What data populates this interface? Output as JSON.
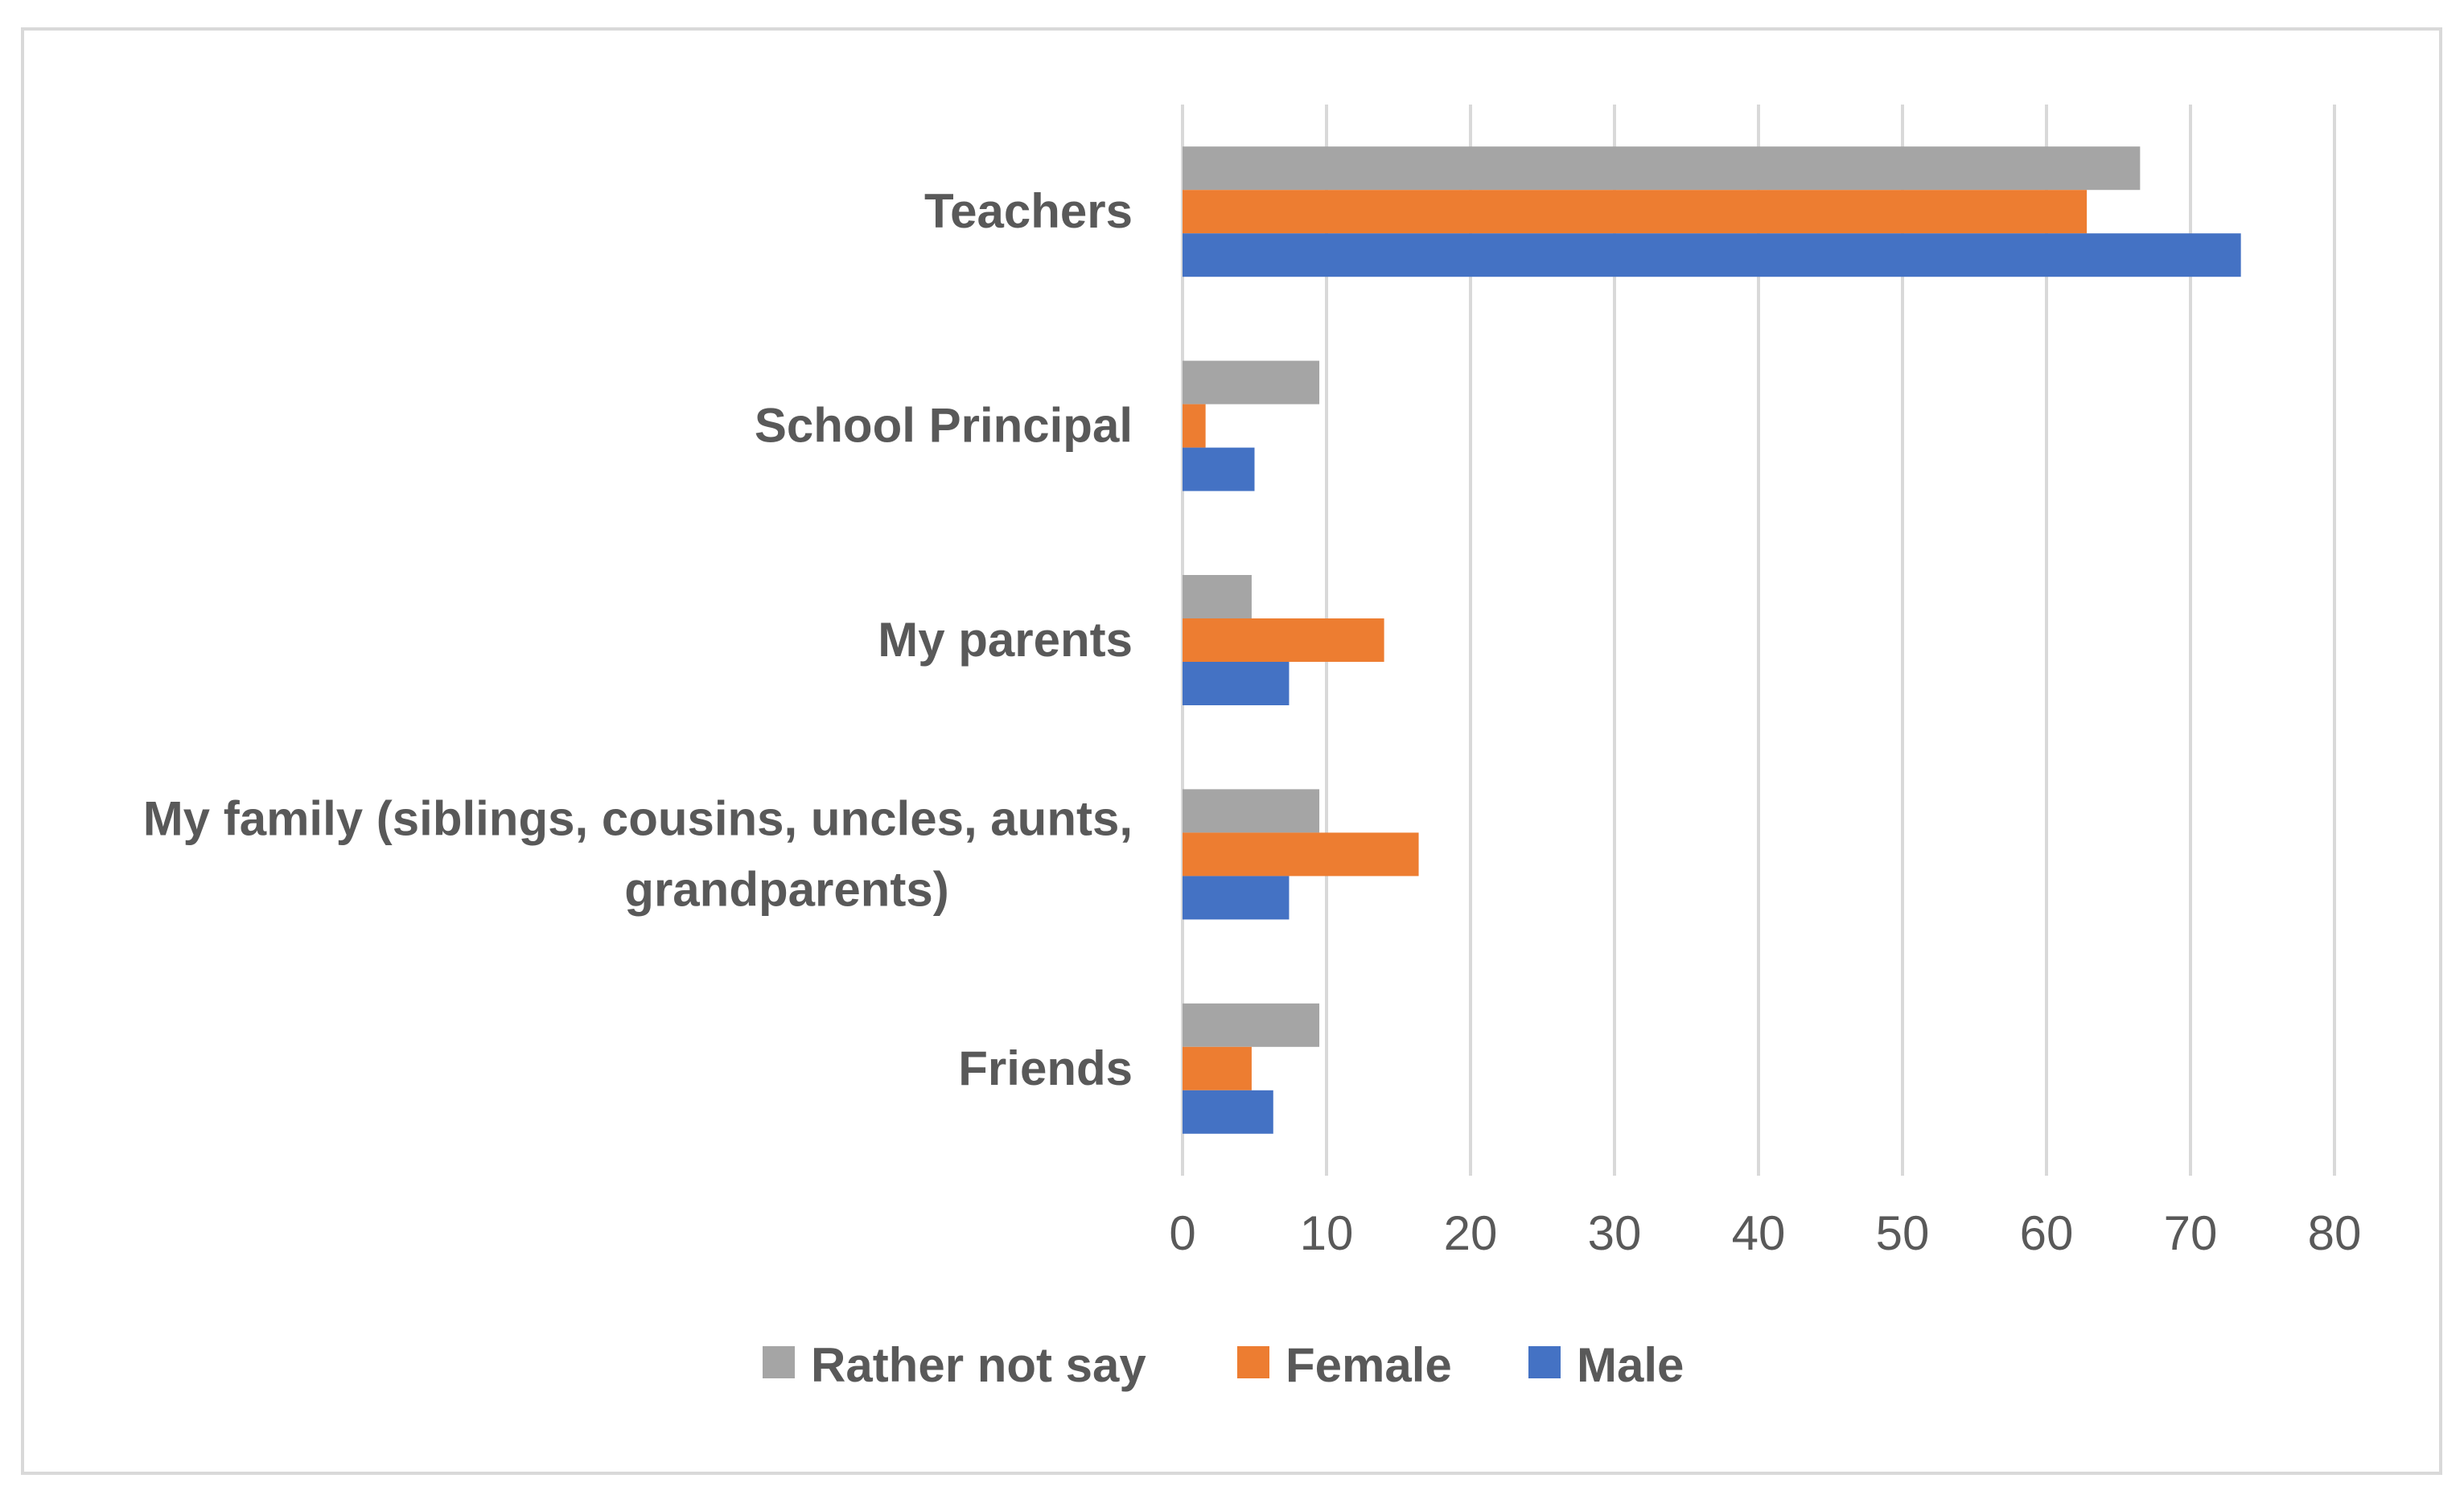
{
  "chart_data": {
    "type": "bar",
    "orientation": "horizontal",
    "title": "",
    "xlabel": "",
    "ylabel": "",
    "xlim": [
      0,
      80
    ],
    "x_ticks": [
      0,
      10,
      20,
      30,
      40,
      50,
      60,
      70,
      80
    ],
    "gridlines": true,
    "legend_position": "bottom",
    "categories": [
      [
        "Teachers"
      ],
      [
        "School Principal"
      ],
      [
        "My parents"
      ],
      [
        "My family (siblings, cousins, uncles, aunts,",
        "grandparents)"
      ],
      [
        "Friends"
      ]
    ],
    "series": [
      {
        "name": "Rather not say",
        "color": "#a5a5a5",
        "values": [
          66.5,
          9.5,
          4.8,
          9.5,
          9.5
        ]
      },
      {
        "name": "Female",
        "color": "#ed7d31",
        "values": [
          62.8,
          1.6,
          14.0,
          16.4,
          4.8
        ]
      },
      {
        "name": "Male",
        "color": "#4472c4",
        "values": [
          73.5,
          5.0,
          7.4,
          7.4,
          6.3
        ]
      }
    ],
    "legend_order": [
      0,
      1,
      2
    ]
  }
}
